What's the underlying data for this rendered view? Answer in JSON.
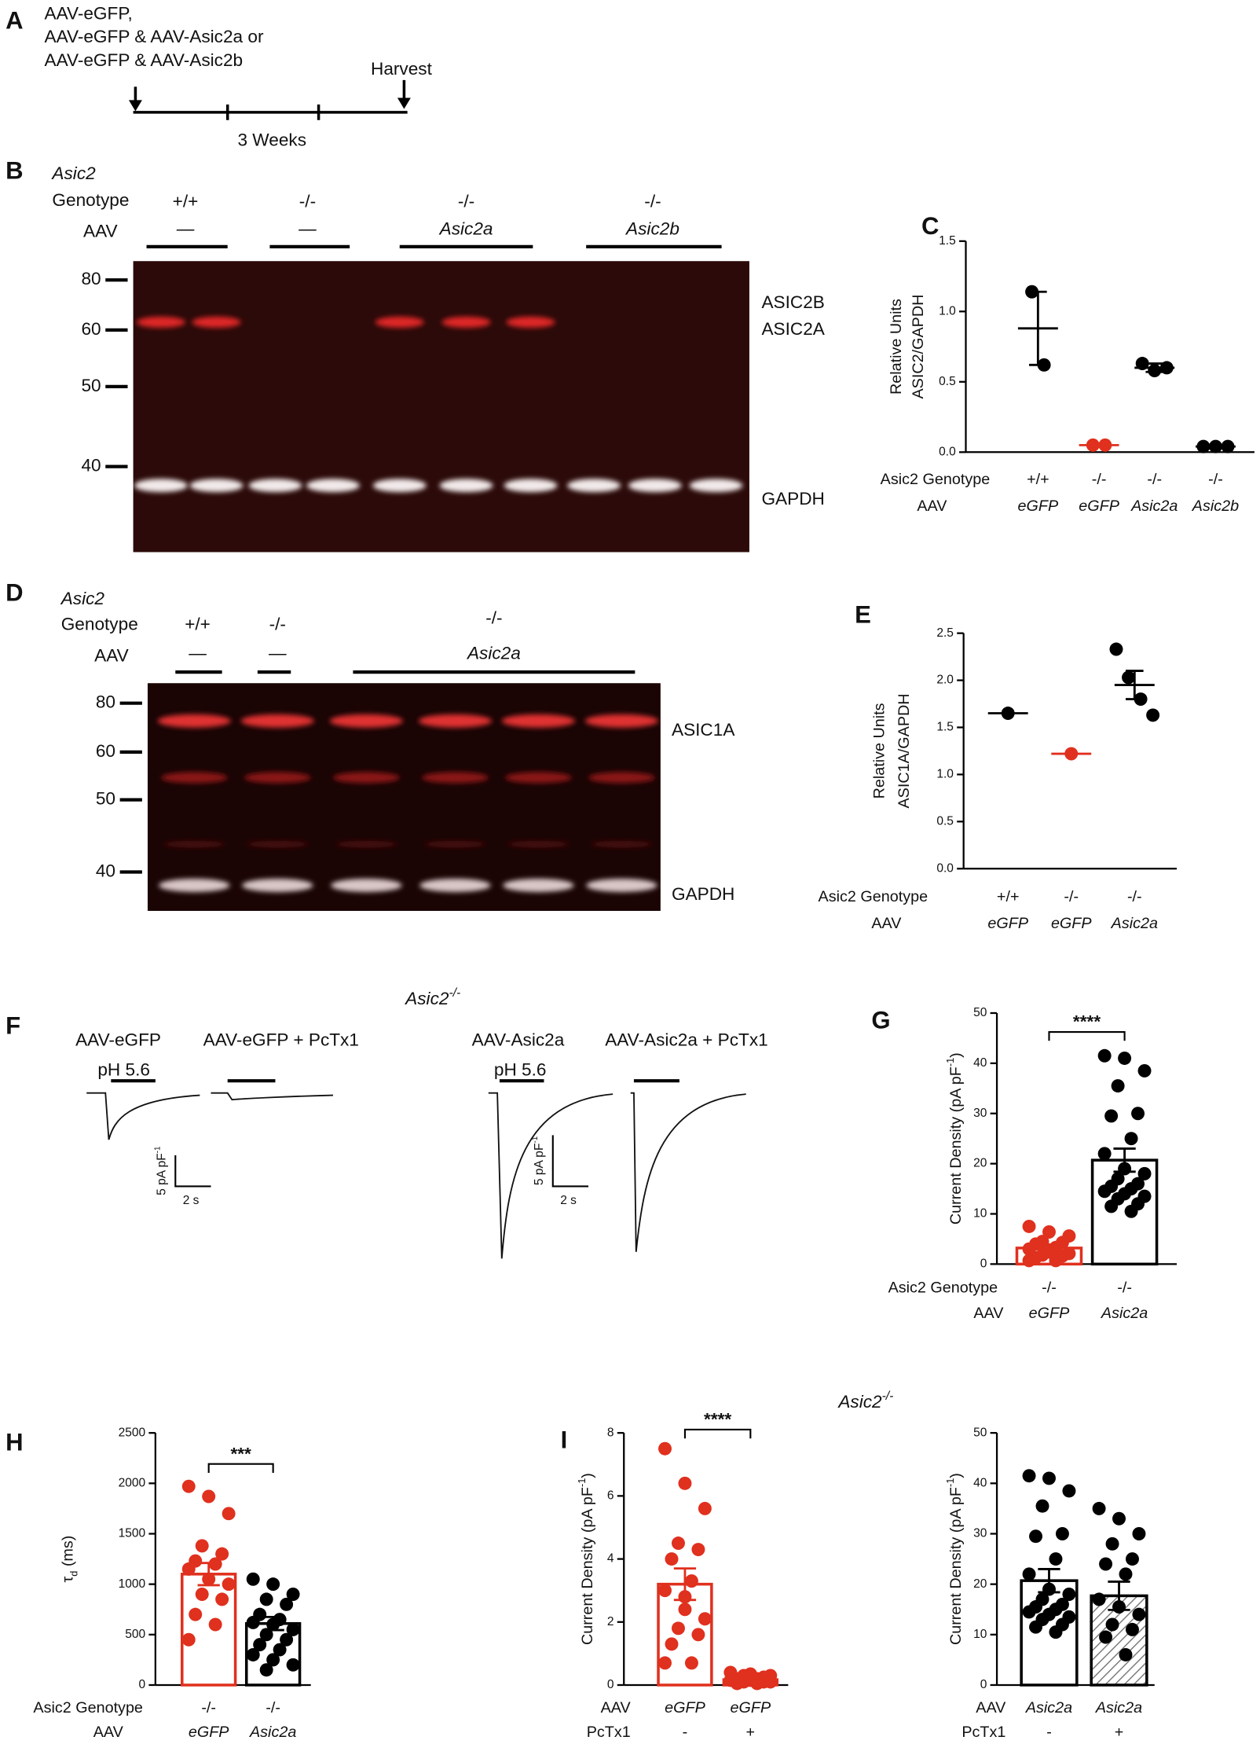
{
  "panel_a": {
    "letter": "A",
    "lines": [
      "AAV-eGFP,",
      "AAV-eGFP & AAV-Asic2a or",
      "AAV-eGFP & AAV-Asic2b"
    ],
    "endpoint": "Harvest",
    "duration": "3 Weeks"
  },
  "panel_b": {
    "letter": "B",
    "gene": "Asic2",
    "genotype_label": "Genotype",
    "aav_label": "AAV",
    "genotypes": [
      "+/+",
      "-/-",
      "-/-",
      "-/-"
    ],
    "aav": [
      "—",
      "—",
      "Asic2a",
      "Asic2b"
    ],
    "markers": [
      "80",
      "60",
      "50",
      "40"
    ],
    "bands": [
      "ASIC2B",
      "ASIC2A",
      "GAPDH"
    ]
  },
  "panel_d": {
    "letter": "D",
    "gene": "Asic2",
    "genotype_label": "Genotype",
    "aav_label": "AAV",
    "genotypes": [
      "+/+",
      "-/-",
      "-/-"
    ],
    "aav": [
      "—",
      "—",
      "Asic2a"
    ],
    "markers": [
      "80",
      "60",
      "50",
      "40"
    ],
    "bands": [
      "ASIC1A",
      "GAPDH"
    ]
  },
  "panel_f": {
    "letter": "F",
    "title": [
      "Asic2",
      "-/-"
    ],
    "conditions": [
      "AAV-eGFP",
      "AAV-eGFP + PcTx1",
      "AAV-Asic2a",
      "AAV-Asic2a + PcTx1"
    ],
    "stimulus": [
      "pH 5.6",
      "pH 5.6"
    ],
    "scale_bars": [
      {
        "y": [
          "5 pA pF",
          "-1"
        ],
        "x": "2 s"
      },
      {
        "y": [
          "5 pA pF",
          "-1"
        ],
        "x": "2 s"
      }
    ]
  },
  "panel_i": {
    "title": [
      "Asic2",
      "-/-"
    ]
  },
  "chart_data": [
    {
      "type": "dot",
      "letter": "C",
      "ylabel": [
        [
          "Relative Units"
        ],
        [
          "ASIC2/GAPDH"
        ]
      ],
      "ylim": [
        0,
        1.5
      ],
      "yticks": [
        {
          "value": 0,
          "label": "0.0"
        },
        0.5,
        {
          "value": 1,
          "label": "1.0"
        },
        1.5
      ],
      "category_rows": [
        {
          "label": "Asic2 Genotype",
          "values": [
            "+/+",
            "-/-",
            "-/-",
            "-/-"
          ]
        },
        {
          "label": "AAV",
          "values": [
            "eGFP",
            "eGFP",
            "Asic2a",
            "Asic2b"
          ]
        }
      ],
      "series": [
        {
          "color": "#000000",
          "values": [
            1.14,
            0.62
          ],
          "mean": 0.88,
          "error": 0.26
        },
        {
          "color": "#e0301e",
          "values": [
            0.05,
            0.05
          ],
          "mean": 0.05
        },
        {
          "color": "#000000",
          "values": [
            0.63,
            0.58,
            0.6
          ],
          "mean": 0.6,
          "error": 0.03
        },
        {
          "color": "#000000",
          "values": [
            0.04,
            0.04,
            0.04
          ],
          "mean": 0.04
        }
      ]
    },
    {
      "type": "dot",
      "letter": "E",
      "ylabel": [
        [
          "Relative Units"
        ],
        [
          "ASIC1A/GAPDH"
        ]
      ],
      "ylim": [
        0,
        2.5
      ],
      "yticks": [
        {
          "value": 0,
          "label": "0.0"
        },
        0.5,
        {
          "value": 1,
          "label": "1.0"
        },
        1.5,
        {
          "value": 2,
          "label": "2.0"
        },
        2.5
      ],
      "category_rows": [
        {
          "label": "Asic2 Genotype",
          "values": [
            "+/+",
            "-/-",
            "-/-"
          ]
        },
        {
          "label": "AAV",
          "values": [
            "eGFP",
            "eGFP",
            "Asic2a"
          ]
        }
      ],
      "series": [
        {
          "color": "#000000",
          "values": [
            1.65
          ],
          "mean": 1.65
        },
        {
          "color": "#e0301e",
          "values": [
            1.22
          ],
          "mean": 1.22
        },
        {
          "color": "#000000",
          "values": [
            2.33,
            2.03,
            1.8,
            1.63
          ],
          "mean": 1.95,
          "error": 0.15
        }
      ]
    },
    {
      "type": "bar_dot",
      "letter": "G",
      "ylabel": [
        [
          "Current Density (pA pF",
          "-1",
          ")"
        ]
      ],
      "ylim": [
        0,
        50
      ],
      "yticks": [
        0,
        10,
        20,
        30,
        40,
        50
      ],
      "significance": "****",
      "category_rows": [
        {
          "label": "Asic2 Genotype",
          "values": [
            "-/-",
            "-/-"
          ]
        },
        {
          "label": "AAV",
          "values": [
            "eGFP",
            "Asic2a"
          ]
        }
      ],
      "series": [
        {
          "color": "#e0301e",
          "values": [
            7.5,
            6.4,
            5.6,
            4.5,
            4.3,
            4.0,
            3.3,
            3.0,
            2.4,
            2.1,
            1.8,
            1.6,
            1.3,
            0.7,
            0.7,
            2.8
          ],
          "mean": 3.2,
          "error": 0.5
        },
        {
          "color": "#000000",
          "values": [
            41.5,
            41,
            38.5,
            35.5,
            30,
            29.5,
            25,
            22,
            19,
            18,
            17,
            16,
            15.5,
            15,
            14.5,
            14,
            13.5,
            13,
            12,
            11.5,
            10.5
          ],
          "mean": 20.7,
          "error": 2.3
        }
      ]
    },
    {
      "type": "bar_dot",
      "letter": "H",
      "ylabel": [
        [
          "τ",
          "d",
          " (ms)"
        ]
      ],
      "ylim": [
        0,
        2500
      ],
      "yticks": [
        0,
        500,
        1000,
        1500,
        2000,
        2500
      ],
      "significance": "***",
      "category_rows": [
        {
          "label": "Asic2 Genotype",
          "values": [
            "-/-",
            "-/-"
          ]
        },
        {
          "label": "AAV",
          "values": [
            "eGFP",
            "Asic2a"
          ]
        }
      ],
      "series": [
        {
          "color": "#e0301e",
          "values": [
            1970,
            1870,
            1700,
            1380,
            1300,
            1230,
            1200,
            1150,
            1050,
            1000,
            900,
            850,
            700,
            600,
            450
          ],
          "mean": 1100,
          "error": 110
        },
        {
          "color": "#000000",
          "values": [
            1050,
            1000,
            900,
            850,
            800,
            700,
            650,
            620,
            600,
            550,
            500,
            450,
            400,
            350,
            300,
            250,
            200,
            150
          ],
          "mean": 610,
          "error": 65
        }
      ]
    },
    {
      "type": "bar_dot",
      "letter": "I",
      "ylabel": [
        [
          "Current Density (pA pF",
          "-1",
          ")"
        ]
      ],
      "ylim": [
        0,
        8
      ],
      "yticks": [
        0,
        2,
        4,
        6,
        8
      ],
      "significance": "****",
      "category_rows": [
        {
          "label": "AAV",
          "values": [
            "eGFP",
            "eGFP"
          ]
        },
        {
          "label": "PcTx1",
          "values": [
            "-",
            "+"
          ]
        }
      ],
      "series": [
        {
          "color": "#e0301e",
          "values": [
            7.5,
            6.4,
            5.6,
            4.5,
            4.3,
            4.0,
            3.3,
            3.0,
            2.4,
            2.1,
            1.8,
            1.6,
            1.3,
            0.7,
            0.7,
            2.8
          ],
          "mean": 3.2,
          "error": 0.5
        },
        {
          "color": "#e0301e",
          "values": [
            0.4,
            0.35,
            0.3,
            0.3,
            0.25,
            0.2,
            0.2,
            0.15,
            0.15,
            0.1,
            0.1,
            0.1,
            0.05,
            0.05
          ],
          "mean": 0.17,
          "error": 0.03
        }
      ]
    },
    {
      "type": "bar_dot",
      "ylabel": [
        [
          "Current Density (pA pF",
          "-1",
          ")"
        ]
      ],
      "ylim": [
        0,
        50
      ],
      "yticks": [
        0,
        10,
        20,
        30,
        40,
        50
      ],
      "category_rows": [
        {
          "label": "AAV",
          "values": [
            "Asic2a",
            "Asic2a"
          ]
        },
        {
          "label": "PcTx1",
          "values": [
            "-",
            "+"
          ]
        }
      ],
      "series": [
        {
          "color": "#000000",
          "values": [
            41.5,
            41,
            38.5,
            35.5,
            30,
            29.5,
            25,
            22,
            19,
            18,
            17,
            16,
            15.5,
            15,
            14.5,
            14,
            13.5,
            13,
            12,
            11.5,
            10.5
          ],
          "mean": 20.7,
          "error": 2.3
        },
        {
          "color": "#000000",
          "pattern": "hatch",
          "values": [
            35,
            33,
            30,
            28,
            25,
            24,
            22,
            17,
            15.5,
            14,
            12,
            11,
            9.5,
            6
          ],
          "mean": 17.7,
          "error": 2.8
        }
      ]
    }
  ]
}
